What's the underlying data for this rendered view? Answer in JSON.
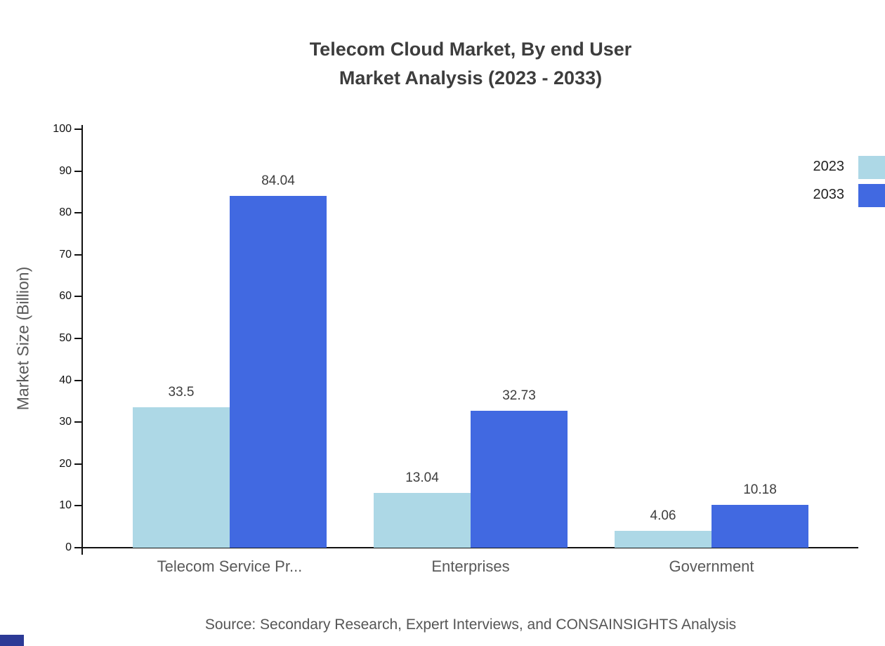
{
  "title": {
    "line1": "Telecom Cloud Market, By end User",
    "line2": "Market Analysis (2023 - 2033)"
  },
  "source": "Source: Secondary Research, Expert Interviews, and CONSAINSIGHTS Analysis",
  "chart_data": {
    "type": "bar",
    "title": "Telecom Cloud Market, By end User Market Analysis (2023 - 2033)",
    "categories": [
      "Telecom Service Pr...",
      "Enterprises",
      "Government"
    ],
    "series": [
      {
        "name": "2023",
        "color": "#add8e6",
        "values": [
          33.5,
          13.04,
          4.06
        ]
      },
      {
        "name": "2033",
        "color": "#4169e1",
        "values": [
          84.04,
          32.73,
          10.18
        ]
      }
    ],
    "value_labels": [
      [
        "33.5",
        "13.04",
        "4.06"
      ],
      [
        "84.04",
        "32.73",
        "10.18"
      ]
    ],
    "xlabel": "",
    "ylabel": "Market Size (Billion)",
    "ylim": [
      0,
      100
    ],
    "yticks": [
      0,
      10,
      20,
      30,
      40,
      50,
      60,
      70,
      80,
      90,
      100
    ],
    "grid": false,
    "legend_position": "top-right"
  }
}
